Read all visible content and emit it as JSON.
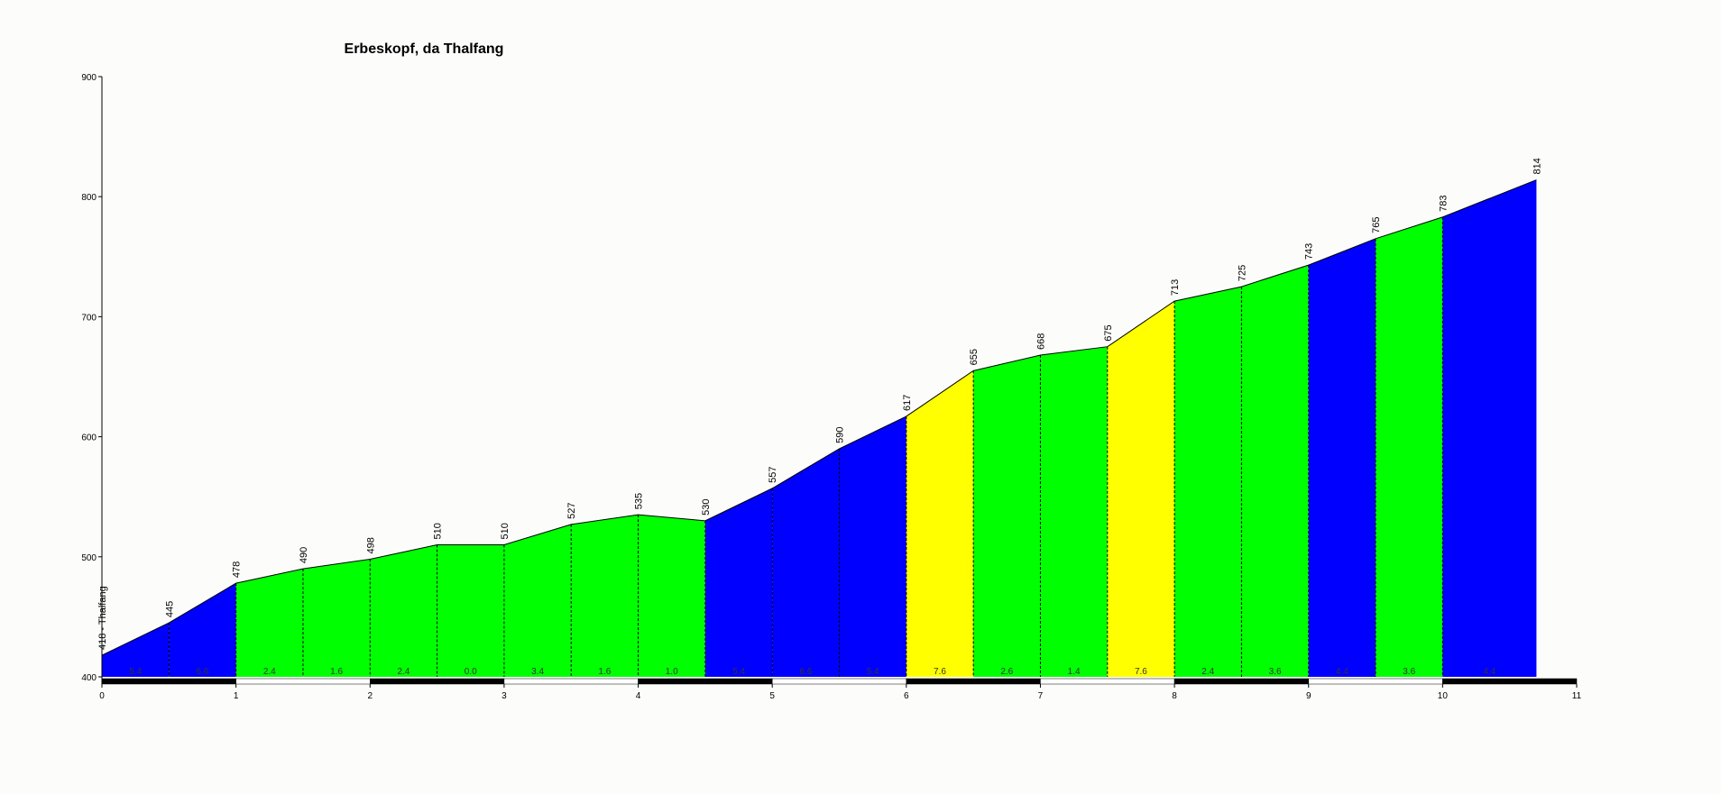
{
  "chart_data": {
    "type": "elevation-profile",
    "title": "Erbeskopf, da Thalfang",
    "x": [
      0,
      0.5,
      1,
      1.5,
      2,
      2.5,
      3,
      3.5,
      4,
      4.5,
      5,
      5.5,
      6,
      6.5,
      7,
      7.5,
      8,
      8.5,
      9,
      9.5,
      10,
      10.7
    ],
    "y": [
      418,
      445,
      478,
      490,
      498,
      510,
      510,
      527,
      535,
      530,
      557,
      590,
      617,
      655,
      668,
      675,
      713,
      725,
      743,
      765,
      783,
      814
    ],
    "point_labels": [
      "418 - Thalfang",
      "445",
      "478",
      "490",
      "498",
      "510",
      "510",
      "527",
      "535",
      "530",
      "557",
      "590",
      "617",
      "655",
      "668",
      "675",
      "713",
      "725",
      "743",
      "765",
      "783",
      "814"
    ],
    "gradient_labels": [
      "5.4",
      "6.6",
      "2.4",
      "1.6",
      "2.4",
      "0.0",
      "3.4",
      "1.6",
      "1.0",
      "5.4",
      "6.6",
      "5.4",
      "7.6",
      "2.6",
      "1.4",
      "7.6",
      "2.4",
      "3.6",
      "4.4",
      "3.6",
      "4.4"
    ],
    "segment_colors": [
      "#0000ff",
      "#0000ff",
      "#00ff00",
      "#00ff00",
      "#00ff00",
      "#00ff00",
      "#00ff00",
      "#00ff00",
      "#00ff00",
      "#0000ff",
      "#0000ff",
      "#0000ff",
      "#ffff00",
      "#00ff00",
      "#00ff00",
      "#ffff00",
      "#00ff00",
      "#00ff00",
      "#0000ff",
      "#00ff00",
      "#0000ff"
    ],
    "xlim": [
      0,
      11
    ],
    "xticks": [
      0,
      1,
      2,
      3,
      4,
      5,
      6,
      7,
      8,
      9,
      10,
      11
    ],
    "ylim": [
      400,
      900
    ],
    "yticks": [
      400,
      500,
      600,
      700,
      800,
      900
    ]
  }
}
